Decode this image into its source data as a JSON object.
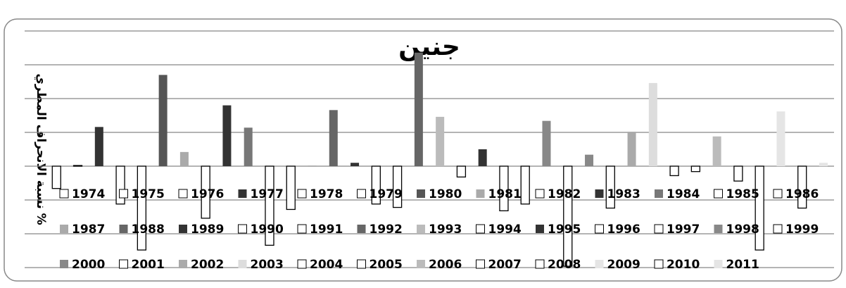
{
  "chart_data": {
    "type": "bar",
    "title": "جنين",
    "y_label": "نسبة الانحراف المطري %",
    "categories": [
      "1974",
      "1975",
      "1976",
      "1977",
      "1978",
      "1979",
      "1980",
      "1981",
      "1982",
      "1983",
      "1984",
      "1985",
      "1986",
      "1987",
      "1988",
      "1989",
      "1990",
      "1991",
      "1992",
      "1993",
      "1994",
      "1995",
      "1996",
      "1997",
      "1998",
      "1999",
      "2000",
      "2001",
      "2002",
      "2003",
      "2004",
      "2005",
      "2006",
      "2007",
      "2008",
      "2009",
      "2010",
      "2011"
    ],
    "values": [
      0,
      -33,
      1,
      58,
      -56,
      -124,
      135,
      21,
      -77,
      90,
      57,
      -117,
      -64,
      1,
      83,
      5,
      -56,
      -61,
      168,
      73,
      -16,
      25,
      -66,
      -56,
      67,
      -148,
      17,
      -62,
      51,
      123,
      -14,
      -8,
      44,
      -22,
      -124,
      81,
      -62,
      5
    ],
    "colors": [
      "#ffffff",
      "#ffffff",
      "#ffffff",
      "#333333",
      "#ffffff",
      "#ffffff",
      "#555555",
      "#aaaaaa",
      "#ffffff",
      "#333333",
      "#777777",
      "#ffffff",
      "#ffffff",
      "#aaaaaa",
      "#666666",
      "#333333",
      "#ffffff",
      "#ffffff",
      "#666666",
      "#bbbbbb",
      "#ffffff",
      "#333333",
      "#ffffff",
      "#ffffff",
      "#888888",
      "#ffffff",
      "#888888",
      "#ffffff",
      "#aaaaaa",
      "#dddddd",
      "#ffffff",
      "#ffffff",
      "#bbbbbb",
      "#ffffff",
      "#ffffff",
      "#e5e5e5",
      "#ffffff",
      "#e5e5e5"
    ],
    "ylim": [
      -150,
      200
    ],
    "yticks": [
      -150,
      -100,
      -50,
      0,
      50,
      100,
      150,
      200
    ],
    "grid": true
  }
}
